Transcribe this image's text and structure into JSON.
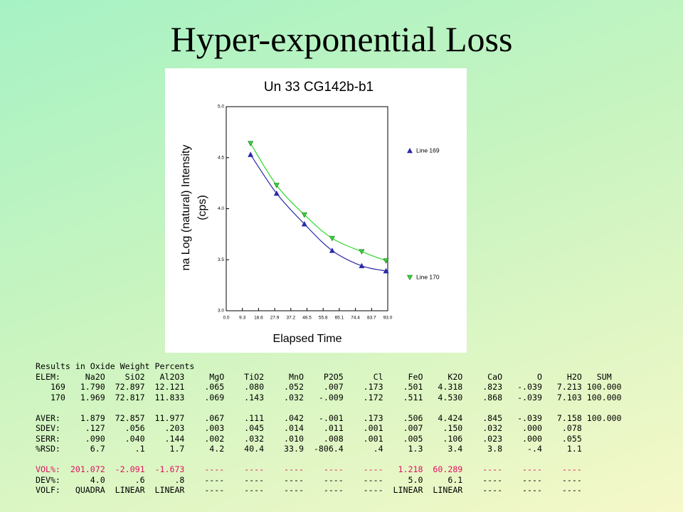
{
  "title": "Hyper-exponential Loss",
  "chart_data": {
    "type": "line",
    "title": "Un   33  CG142b-b1",
    "xlabel": "Elapsed Time",
    "ylabel": [
      "na Log (natural) Intensity",
      "(cps)"
    ],
    "xlim": [
      0,
      93
    ],
    "ylim": [
      3,
      5
    ],
    "xticks": [
      {
        "value": 0,
        "label": "0.0"
      },
      9.3,
      18.6,
      27.9,
      37.2,
      46.5,
      55.8,
      65.1,
      74.4,
      83.7,
      {
        "value": 93,
        "label": "93.0"
      }
    ],
    "yticks": [
      {
        "value": 3,
        "label": "3.0"
      },
      3.5,
      {
        "value": 4,
        "label": "4.0"
      },
      4.5,
      {
        "value": 5,
        "label": "5.0"
      }
    ],
    "series": [
      {
        "name": "Line 169",
        "color": "#2a2aa8",
        "marker": "triangle-up",
        "x": [
          14,
          29,
          45,
          61,
          78,
          92
        ],
        "values": [
          4.53,
          4.15,
          3.85,
          3.59,
          3.44,
          3.39
        ]
      },
      {
        "name": "Line 170",
        "color": "#2fd82f",
        "marker": "triangle-down",
        "x": [
          14,
          29,
          45,
          61,
          78,
          92
        ],
        "values": [
          4.64,
          4.23,
          3.94,
          3.71,
          3.58,
          3.49
        ]
      }
    ]
  },
  "results": {
    "lines": [
      "Results in Oxide Weight Percents",
      "ELEM:     Na2O    SiO2   Al2O3     MgO    TiO2     MnO    P2O5      Cl     FeO     K2O     CaO       O     H2O   SUM",
      "   169   1.790  72.897  12.121    .065    .080    .052    .007    .173    .501   4.318    .823   -.039   7.213 100.000",
      "   170   1.969  72.817  11.833    .069    .143    .032   -.009    .172    .511   4.530    .868   -.039   7.103 100.000",
      "AVER:    1.879  72.857  11.977    .067    .111    .042   -.001    .173    .506   4.424    .845   -.039   7.158 100.000",
      "SDEV:     .127    .056    .203    .003    .045    .014    .011    .001    .007    .150    .032    .000    .078",
      "SERR:     .090    .040    .144    .002    .032    .010    .008    .001    .005    .106    .023    .000    .055",
      "%RSD:      6.7      .1     1.7     4.2    40.4    33.9  -806.4      .4     1.3     3.4     3.8     -.4     1.1",
      "VOL%:  201.072  -2.091  -1.673    ----    ----    ----    ----    ----   1.218  60.289    ----    ----    ----",
      "DEV%:      4.0      .6      .8    ----    ----    ----    ----    ----     5.0     6.1    ----    ----    ----",
      "VOLF:   QUADRA  LINEAR  LINEAR    ----    ----    ----    ----    ----  LINEAR  LINEAR    ----    ----    ----"
    ]
  }
}
